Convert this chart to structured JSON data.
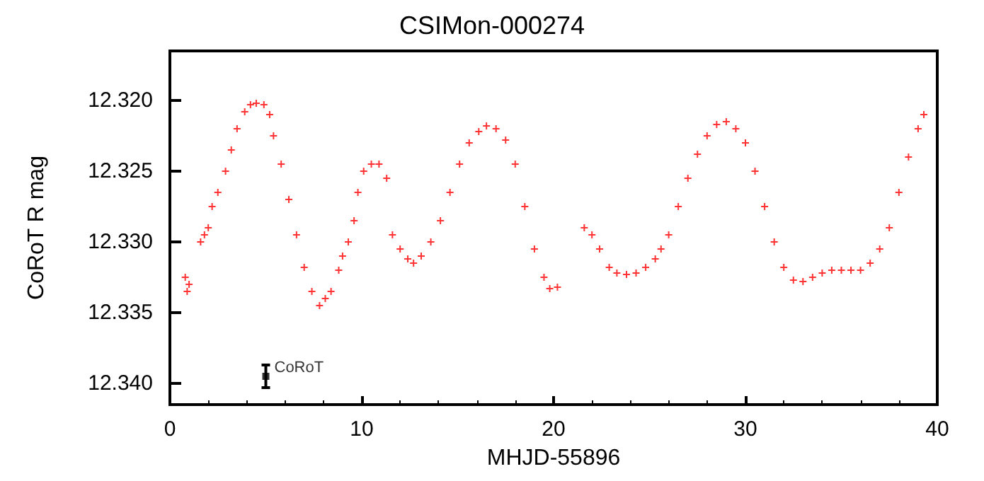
{
  "chart_data": {
    "type": "scatter",
    "title": "CSIMon-000274",
    "xlabel": "MHJD-55896",
    "ylabel": "CoRoT R mag",
    "xlim": [
      0,
      40
    ],
    "xticks": [
      0,
      10,
      20,
      30,
      40
    ],
    "ylim": [
      12.3415,
      12.3165
    ],
    "yticks": [
      {
        "value": 12.32,
        "label": "12.320"
      },
      {
        "value": 12.325,
        "label": "12.325"
      },
      {
        "value": 12.33,
        "label": "12.330"
      },
      {
        "value": 12.335,
        "label": "12.335"
      },
      {
        "value": 12.34,
        "label": "12.340"
      }
    ],
    "grid": false,
    "series": [
      {
        "color": "#ff0000",
        "marker": "cross",
        "x": [
          0.8,
          0.9,
          1.0,
          1.6,
          1.8,
          2.0,
          2.2,
          2.5,
          2.9,
          3.2,
          3.5,
          3.9,
          4.2,
          4.5,
          4.9,
          5.2,
          5.4,
          5.8,
          6.2,
          6.6,
          7.0,
          7.4,
          7.8,
          8.1,
          8.4,
          8.8,
          9.0,
          9.3,
          9.6,
          9.8,
          10.1,
          10.5,
          10.9,
          11.3,
          11.6,
          12.0,
          12.4,
          12.7,
          13.1,
          13.6,
          14.1,
          14.6,
          15.1,
          15.6,
          16.1,
          16.5,
          17.0,
          17.5,
          18.0,
          18.5,
          19.0,
          19.5,
          19.8,
          20.2,
          21.6,
          22.0,
          22.4,
          22.9,
          23.3,
          23.8,
          24.3,
          24.8,
          25.3,
          25.6,
          26.0,
          26.5,
          27.0,
          27.5,
          28.0,
          28.5,
          29.0,
          29.5,
          30.0,
          30.5,
          31.0,
          31.5,
          32.0,
          32.5,
          33.0,
          33.5,
          34.0,
          34.5,
          35.0,
          35.5,
          36.0,
          36.5,
          37.0,
          37.5,
          38.0,
          38.5,
          39.0,
          39.3
        ],
        "values": [
          12.3325,
          12.3335,
          12.333,
          12.33,
          12.3295,
          12.329,
          12.3275,
          12.3265,
          12.325,
          12.3235,
          12.322,
          12.3208,
          12.3203,
          12.3202,
          12.3203,
          12.321,
          12.3225,
          12.3245,
          12.327,
          12.3295,
          12.3318,
          12.3335,
          12.3345,
          12.334,
          12.3335,
          12.332,
          12.331,
          12.33,
          12.3285,
          12.3265,
          12.325,
          12.3245,
          12.3245,
          12.3255,
          12.3295,
          12.3305,
          12.3312,
          12.3315,
          12.331,
          12.33,
          12.3285,
          12.3265,
          12.3245,
          12.323,
          12.3222,
          12.3218,
          12.322,
          12.3228,
          12.3245,
          12.3275,
          12.3305,
          12.3325,
          12.3333,
          12.3332,
          12.329,
          12.3295,
          12.3305,
          12.3318,
          12.3322,
          12.3323,
          12.3322,
          12.3318,
          12.3312,
          12.3305,
          12.3295,
          12.3275,
          12.3255,
          12.3238,
          12.3225,
          12.3217,
          12.3215,
          12.322,
          12.323,
          12.325,
          12.3275,
          12.33,
          12.3318,
          12.3327,
          12.3328,
          12.3325,
          12.3322,
          12.332,
          12.332,
          12.332,
          12.332,
          12.3315,
          12.3305,
          12.329,
          12.3265,
          12.324,
          12.322,
          12.321
        ]
      },
      {
        "color": "#000000",
        "marker": "square",
        "x": [
          5.0
        ],
        "values": [
          12.3395
        ],
        "errors": [
          0.0008
        ]
      }
    ],
    "annotations": [
      {
        "text": "CoRoT",
        "x": 5.0,
        "y": 12.3395
      }
    ]
  }
}
